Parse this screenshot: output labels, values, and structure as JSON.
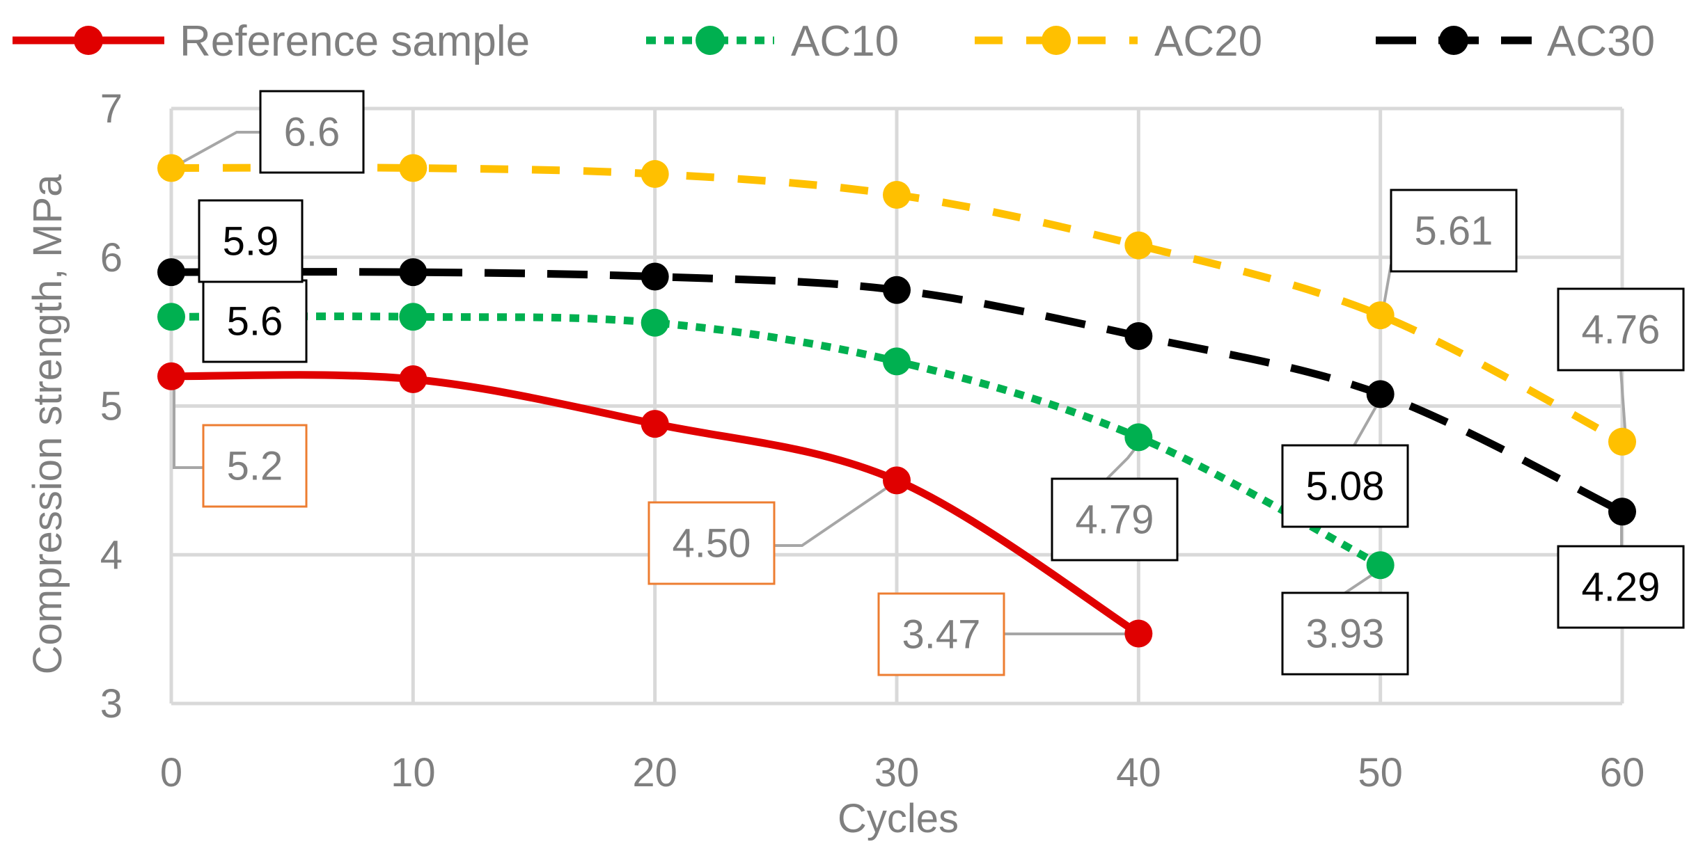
{
  "chart_data": {
    "type": "line",
    "title": "",
    "xlabel": "Cycles",
    "ylabel": "Compression strength, MPa",
    "xlim": [
      0,
      60
    ],
    "ylim": [
      3,
      7
    ],
    "xticks": [
      "0",
      "10",
      "20",
      "30",
      "40",
      "50",
      "60"
    ],
    "yticks": [
      "3",
      "4",
      "5",
      "6",
      "7"
    ],
    "grid": true,
    "legend_position": "top",
    "series": [
      {
        "name": "Reference sample",
        "color": "#e00000",
        "style": "solid",
        "x": [
          0,
          10,
          20,
          30,
          40
        ],
        "values": [
          5.2,
          5.18,
          4.88,
          4.5,
          3.47
        ],
        "data_labels": [
          {
            "index": 0,
            "text": "5.2",
            "border": "#ed7d31"
          },
          {
            "index": 3,
            "text": "4.50",
            "border": "#ed7d31"
          },
          {
            "index": 4,
            "text": "3.47",
            "border": "#ed7d31"
          }
        ]
      },
      {
        "name": "AC10",
        "color": "#00b050",
        "style": "dotted",
        "x": [
          0,
          10,
          20,
          30,
          40,
          50
        ],
        "values": [
          5.6,
          5.6,
          5.56,
          5.3,
          4.79,
          3.93
        ],
        "data_labels": [
          {
            "index": 0,
            "text": "5.6",
            "border": "#000000"
          },
          {
            "index": 4,
            "text": "4.79",
            "border": "#000000"
          },
          {
            "index": 5,
            "text": "3.93",
            "border": "#000000"
          }
        ]
      },
      {
        "name": "AC20",
        "color": "#ffc000",
        "style": "dashed",
        "x": [
          0,
          10,
          20,
          30,
          40,
          50,
          60
        ],
        "values": [
          6.6,
          6.6,
          6.56,
          6.42,
          6.08,
          5.61,
          4.76
        ],
        "data_labels": [
          {
            "index": 0,
            "text": "6.6",
            "border": "#000000"
          },
          {
            "index": 5,
            "text": "5.61",
            "border": "#000000"
          },
          {
            "index": 6,
            "text": "4.76",
            "border": "#000000"
          }
        ]
      },
      {
        "name": "AC30",
        "color": "#000000",
        "style": "longdash",
        "x": [
          0,
          10,
          20,
          30,
          40,
          50,
          60
        ],
        "values": [
          5.9,
          5.9,
          5.87,
          5.78,
          5.47,
          5.08,
          4.29
        ],
        "data_labels": [
          {
            "index": 0,
            "text": "5.9",
            "border": "#000000"
          },
          {
            "index": 5,
            "text": "5.08",
            "border": "#000000"
          },
          {
            "index": 6,
            "text": "4.29",
            "border": "#000000"
          }
        ]
      }
    ]
  }
}
